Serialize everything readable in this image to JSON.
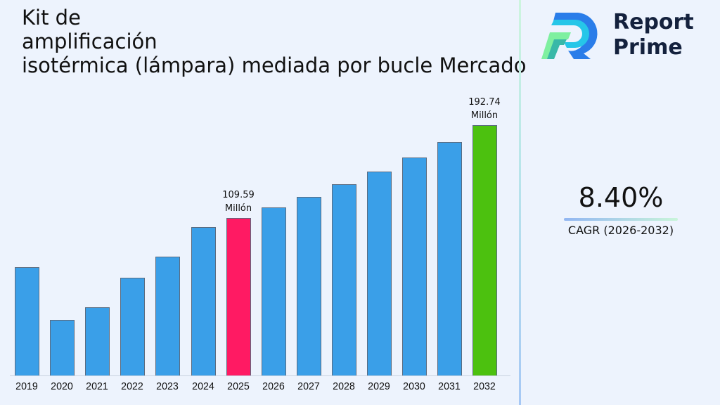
{
  "title_lines": [
    "Kit de",
    "amplificación",
    "isotérmica (lámpara) mediada por bucle Mercado"
  ],
  "brand": {
    "line1": "Report",
    "line2": "Prime"
  },
  "cagr": {
    "value": "8.40%",
    "label": "CAGR (2026-2032)"
  },
  "colors": {
    "default_bar": "#3a9fe8",
    "highlight_2025": "#ff1a63",
    "highlight_2032": "#4cc10f",
    "background": "#edf3fd"
  },
  "annotations": [
    {
      "year": "2025",
      "value": "109.59",
      "unit": "Millón"
    },
    {
      "year": "2032",
      "value": "192.74",
      "unit": "Millón"
    }
  ],
  "chart_data": {
    "type": "bar",
    "title": "Kit de amplificación isotérmica (lámpara) mediada por bucle Mercado",
    "categories": [
      "2019",
      "2020",
      "2021",
      "2022",
      "2023",
      "2024",
      "2025",
      "2026",
      "2027",
      "2028",
      "2029",
      "2030",
      "2031",
      "2032"
    ],
    "values": [
      65.5,
      18.3,
      29.6,
      56.1,
      75.0,
      101.4,
      109.59,
      118.8,
      128.78,
      139.6,
      151.32,
      164.03,
      177.81,
      192.74
    ],
    "unit": "Millón",
    "xlabel": "",
    "ylabel": "",
    "grid": false,
    "legend": null,
    "labeled_points": {
      "2025": 109.59,
      "2032": 192.74
    },
    "cagr": "8.40%",
    "cagr_period": "2026-2032"
  }
}
